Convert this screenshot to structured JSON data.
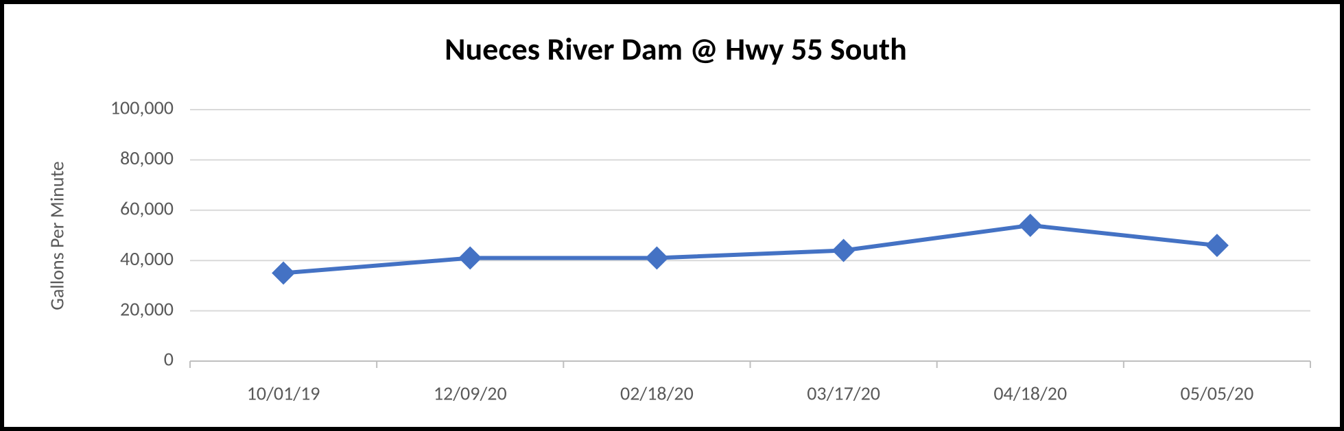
{
  "chart_data": {
    "type": "line",
    "title": "Nueces River Dam @ Hwy 55 South",
    "y_label": "Gallons Per Minute",
    "categories": [
      "10/01/19",
      "12/09/20",
      "02/18/20",
      "03/17/20",
      "04/18/20",
      "05/05/20"
    ],
    "values": [
      35000,
      41000,
      41000,
      44000,
      54000,
      46000
    ],
    "color": "#4472c4",
    "ylim": [
      0,
      100000
    ],
    "yticks": [
      0,
      {
        "value": 20000,
        "label": "20,000"
      },
      {
        "value": 40000,
        "label": "40,000"
      },
      {
        "value": 60000,
        "label": "60,000"
      },
      {
        "value": 80000,
        "label": "80,000"
      },
      {
        "value": 100000,
        "label": "100,000"
      }
    ],
    "grid": true,
    "marker": "diamond"
  }
}
